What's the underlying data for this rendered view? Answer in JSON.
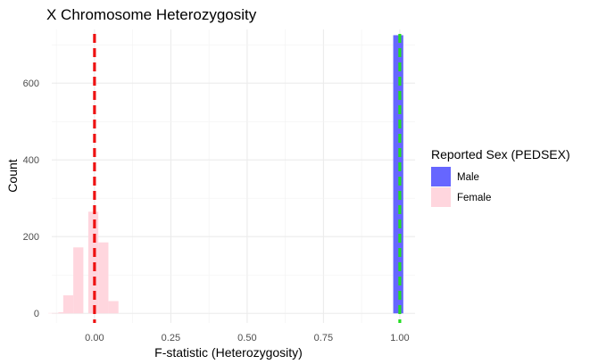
{
  "chart_data": {
    "type": "bar",
    "title": "X Chromosome Heterozygosity",
    "xlabel": "F-statistic (Heterozygosity)",
    "ylabel": "Count",
    "xlim": [
      -0.14,
      1.05
    ],
    "ylim": [
      -25,
      740
    ],
    "x_ticks": [
      0.0,
      0.25,
      0.5,
      0.75,
      1.0
    ],
    "x_tick_labels": [
      "0.00",
      "0.25",
      "0.50",
      "0.75",
      "1.00"
    ],
    "y_ticks": [
      0,
      200,
      400,
      600
    ],
    "y_tick_labels": [
      "0",
      "200",
      "400",
      "600"
    ],
    "grid": true,
    "bin_width": 0.033,
    "legend_position": "right",
    "legend_title": "Reported Sex (PEDSEX)",
    "series": [
      {
        "name": "Male",
        "color": "#6666ff",
        "bins": [
          {
            "x": 0.995,
            "count": 725
          }
        ]
      },
      {
        "name": "Female",
        "color": "#ffd6de",
        "bins": [
          {
            "x": -0.135,
            "count": 1
          },
          {
            "x": -0.102,
            "count": 3
          },
          {
            "x": -0.086,
            "count": 47
          },
          {
            "x": -0.053,
            "count": 172
          },
          {
            "x": -0.004,
            "count": 265
          },
          {
            "x": 0.029,
            "count": 185
          },
          {
            "x": 0.062,
            "count": 32
          }
        ]
      }
    ],
    "reference_lines": [
      {
        "x": 0.0,
        "color": "#ee1111",
        "style": "dashed"
      },
      {
        "x": 1.0,
        "color": "#22dd22",
        "style": "dashed"
      }
    ]
  }
}
